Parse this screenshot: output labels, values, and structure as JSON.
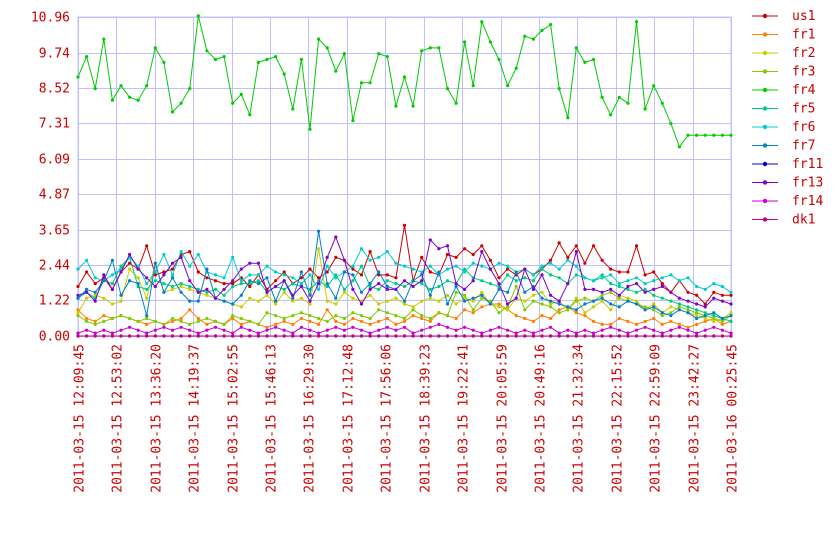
{
  "chart_data": {
    "type": "line",
    "title": "",
    "xlabel": "",
    "ylabel": "",
    "ylim": [
      0,
      10.96
    ],
    "grid": true,
    "legend": "right",
    "y_ticks": [
      "0.00",
      "1.22",
      "2.44",
      "3.65",
      "4.87",
      "6.09",
      "7.31",
      "8.52",
      "9.74",
      "10.96"
    ],
    "x_ticks": [
      "2011-03-15 12:09:45",
      "2011-03-15 12:53:02",
      "2011-03-15 13:36:20",
      "2011-03-15 14:19:37",
      "2011-03-15 15:02:55",
      "2011-03-15 15:46:13",
      "2011-03-15 16:29:30",
      "2011-03-15 17:12:48",
      "2011-03-15 17:56:06",
      "2011-03-15 18:39:23",
      "2011-03-15 19:22:41",
      "2011-03-15 20:05:59",
      "2011-03-15 20:49:16",
      "2011-03-15 21:32:34",
      "2011-03-15 22:15:52",
      "2011-03-15 22:59:09",
      "2011-03-15 23:42:27",
      "2011-03-16 00:25:45"
    ],
    "series": [
      {
        "name": "us1",
        "color": "#cc0000",
        "values": [
          1.7,
          2.2,
          1.8,
          2.0,
          1.6,
          2.2,
          2.5,
          2.3,
          3.1,
          2.1,
          2.2,
          2.3,
          2.8,
          2.9,
          2.2,
          2.0,
          1.9,
          1.8,
          1.8,
          2.0,
          1.7,
          2.1,
          1.6,
          1.9,
          2.2,
          1.8,
          2.0,
          2.3,
          2.0,
          2.2,
          2.7,
          2.6,
          2.3,
          2.1,
          2.9,
          2.1,
          2.1,
          2.0,
          3.8,
          1.9,
          2.7,
          2.2,
          2.1,
          2.8,
          2.7,
          3.0,
          2.8,
          3.1,
          2.6,
          2.0,
          2.3,
          2.1,
          2.3,
          2.1,
          2.3,
          2.6,
          3.2,
          2.7,
          3.1,
          2.5,
          3.1,
          2.6,
          2.3,
          2.2,
          2.2,
          3.1,
          2.1,
          2.2,
          1.8,
          1.5,
          1.9,
          1.5,
          1.4,
          1.1,
          1.5,
          1.4,
          1.4
        ]
      },
      {
        "name": "fr1",
        "color": "#ff8000",
        "values": [
          0.9,
          0.6,
          0.5,
          0.7,
          0.6,
          0.7,
          0.6,
          0.5,
          0.4,
          0.5,
          0.4,
          0.5,
          0.6,
          0.9,
          0.6,
          0.4,
          0.5,
          0.4,
          0.6,
          0.4,
          0.5,
          0.4,
          0.3,
          0.4,
          0.5,
          0.4,
          0.6,
          0.5,
          0.4,
          0.9,
          0.5,
          0.4,
          0.6,
          0.5,
          0.4,
          0.5,
          0.6,
          0.4,
          0.5,
          0.7,
          0.6,
          0.5,
          0.8,
          0.7,
          0.6,
          0.9,
          0.8,
          1.0,
          1.1,
          1.1,
          0.9,
          0.7,
          0.6,
          0.5,
          0.7,
          0.6,
          0.9,
          1.0,
          0.8,
          0.7,
          0.5,
          0.4,
          0.4,
          0.6,
          0.5,
          0.4,
          0.5,
          0.6,
          0.4,
          0.5,
          0.4,
          0.3,
          0.4,
          0.5,
          0.6,
          0.4,
          0.5
        ]
      },
      {
        "name": "fr2",
        "color": "#cccc00",
        "values": [
          0.8,
          1.3,
          1.4,
          1.3,
          1.1,
          1.2,
          2.3,
          2.0,
          1.3,
          2.5,
          1.5,
          1.6,
          1.7,
          1.6,
          1.5,
          1.4,
          1.3,
          1.2,
          1.1,
          1.0,
          1.3,
          1.2,
          1.4,
          1.1,
          1.5,
          1.2,
          1.3,
          1.1,
          3.0,
          1.2,
          1.1,
          1.5,
          1.3,
          1.2,
          1.4,
          1.1,
          1.2,
          1.3,
          1.1,
          1.0,
          1.2,
          1.3,
          1.2,
          1.4,
          1.1,
          1.3,
          1.2,
          1.5,
          1.1,
          1.0,
          0.9,
          1.3,
          1.2,
          1.4,
          1.5,
          1.1,
          1.2,
          0.9,
          1.3,
          0.8,
          1.0,
          1.2,
          0.9,
          1.4,
          1.3,
          1.2,
          0.9,
          1.1,
          0.8,
          1.0,
          0.9,
          0.8,
          0.7,
          0.6,
          0.5,
          0.6,
          0.8
        ]
      },
      {
        "name": "fr3",
        "color": "#80cc00",
        "values": [
          0.7,
          0.5,
          0.4,
          0.5,
          0.6,
          0.7,
          0.6,
          0.5,
          0.6,
          0.5,
          0.4,
          0.6,
          0.5,
          0.4,
          0.5,
          0.6,
          0.5,
          0.4,
          0.7,
          0.6,
          0.5,
          0.4,
          0.8,
          0.7,
          0.6,
          0.7,
          0.8,
          0.7,
          0.6,
          0.5,
          0.7,
          0.6,
          0.8,
          0.7,
          0.6,
          0.9,
          0.8,
          0.7,
          0.6,
          0.9,
          0.7,
          0.6,
          0.8,
          0.7,
          1.5,
          1.4,
          0.9,
          1.3,
          1.2,
          0.8,
          1.0,
          1.7,
          0.9,
          1.2,
          1.1,
          1.0,
          0.8,
          0.9,
          1.2,
          1.3,
          1.2,
          1.4,
          1.5,
          1.3,
          1.2,
          1.1,
          1.0,
          0.9,
          0.7,
          0.8,
          1.0,
          0.9,
          0.8,
          0.7,
          0.6,
          0.5,
          0.7
        ]
      },
      {
        "name": "fr4",
        "color": "#00cc00",
        "values": [
          8.9,
          9.6,
          8.5,
          10.2,
          8.1,
          8.6,
          8.2,
          8.1,
          8.6,
          9.9,
          9.4,
          7.7,
          8.0,
          8.5,
          11.0,
          9.8,
          9.5,
          9.6,
          8.0,
          8.3,
          7.6,
          9.4,
          9.5,
          9.6,
          9.0,
          7.8,
          9.5,
          7.1,
          10.2,
          9.9,
          9.1,
          9.7,
          7.4,
          8.7,
          8.7,
          9.7,
          9.6,
          7.9,
          8.9,
          7.9,
          9.8,
          9.9,
          9.9,
          8.5,
          8.0,
          10.1,
          8.6,
          10.8,
          10.1,
          9.5,
          8.6,
          9.2,
          10.3,
          10.2,
          10.5,
          10.7,
          8.5,
          7.5,
          9.9,
          9.4,
          9.5,
          8.2,
          7.6,
          8.2,
          8.0,
          10.8,
          7.8,
          8.6,
          8.0,
          7.3,
          6.5,
          6.9,
          6.9,
          6.9,
          6.9,
          6.9,
          6.9
        ]
      },
      {
        "name": "fr5",
        "color": "#00cc80",
        "values": [
          1.3,
          1.5,
          1.3,
          1.9,
          1.8,
          2.4,
          2.7,
          1.7,
          1.6,
          1.9,
          1.8,
          1.7,
          1.8,
          1.7,
          1.6,
          1.5,
          1.6,
          1.4,
          1.7,
          1.8,
          1.8,
          1.9,
          1.5,
          1.7,
          1.6,
          1.8,
          1.7,
          1.6,
          1.9,
          1.7,
          2.1,
          1.6,
          1.9,
          2.4,
          1.7,
          1.6,
          1.9,
          1.8,
          1.7,
          1.9,
          1.8,
          1.6,
          1.7,
          1.9,
          1.8,
          2.3,
          2.0,
          1.9,
          1.8,
          1.7,
          2.1,
          1.9,
          2.0,
          1.9,
          2.3,
          2.1,
          2.0,
          1.8,
          2.1,
          2.0,
          1.9,
          2.1,
          1.8,
          1.7,
          1.6,
          1.5,
          1.6,
          1.4,
          1.3,
          1.2,
          1.1,
          1.0,
          0.9,
          0.8,
          0.7,
          0.6,
          0.5
        ]
      },
      {
        "name": "fr6",
        "color": "#00cccc",
        "values": [
          2.3,
          2.6,
          2.0,
          1.9,
          2.1,
          2.3,
          2.7,
          2.4,
          1.8,
          2.2,
          2.8,
          2.1,
          2.9,
          2.4,
          2.8,
          2.2,
          2.1,
          2.0,
          2.7,
          1.9,
          2.1,
          2.1,
          2.4,
          2.2,
          2.1,
          2.0,
          1.8,
          2.1,
          1.6,
          2.4,
          2.0,
          2.2,
          2.4,
          3.0,
          2.6,
          2.7,
          2.9,
          2.5,
          2.4,
          2.3,
          2.2,
          2.4,
          2.1,
          2.3,
          2.4,
          2.2,
          2.5,
          2.4,
          2.3,
          2.5,
          2.4,
          2.2,
          2.3,
          2.1,
          2.4,
          2.5,
          2.3,
          2.6,
          2.4,
          2.0,
          1.9,
          2.0,
          2.1,
          1.8,
          1.9,
          2.0,
          1.8,
          1.9,
          2.0,
          2.1,
          1.9,
          2.0,
          1.7,
          1.6,
          1.8,
          1.7,
          1.5
        ]
      },
      {
        "name": "fr7",
        "color": "#0080cc",
        "values": [
          1.3,
          1.6,
          1.5,
          1.9,
          2.6,
          1.4,
          1.9,
          1.8,
          0.7,
          2.5,
          1.5,
          2.0,
          1.5,
          1.2,
          1.2,
          2.3,
          1.3,
          1.2,
          1.1,
          1.4,
          1.9,
          1.8,
          2.0,
          1.2,
          1.9,
          1.3,
          2.2,
          1.4,
          3.6,
          1.8,
          1.3,
          2.2,
          2.1,
          1.5,
          1.8,
          2.2,
          1.7,
          1.6,
          1.2,
          1.9,
          2.1,
          1.4,
          2.2,
          1.1,
          1.7,
          1.2,
          1.3,
          1.4,
          1.1,
          1.6,
          1.5,
          2.2,
          1.5,
          1.7,
          1.3,
          1.2,
          1.1,
          1.0,
          0.9,
          1.1,
          1.2,
          1.3,
          1.1,
          1.0,
          1.2,
          1.1,
          0.9,
          1.0,
          0.8,
          0.7,
          0.9,
          0.8,
          0.6,
          0.7,
          0.8,
          0.6,
          0.7
        ]
      },
      {
        "name": "fr11",
        "color": "#0000cc",
        "values": [
          0.0,
          0.0,
          0.0,
          0.0,
          0.0,
          0.0,
          0.0,
          0.0,
          0.0,
          0.0,
          0.0,
          0.0,
          0.0,
          0.0,
          0.0,
          0.0,
          0.0,
          0.0,
          0.0,
          0.0,
          0.0,
          0.0,
          0.0,
          0.0,
          0.0,
          0.0,
          0.0,
          0.0,
          0.0,
          0.0,
          0.0,
          0.0,
          0.0,
          0.0,
          0.0,
          0.0,
          0.0,
          0.0,
          0.0,
          0.0,
          0.0,
          0.0,
          0.0,
          0.0,
          0.0,
          0.0,
          0.0,
          0.0,
          0.0,
          0.0,
          0.0,
          0.0,
          0.0,
          0.0,
          0.0,
          0.0,
          0.0,
          0.0,
          0.0,
          0.0,
          0.0,
          0.0,
          0.0,
          0.0,
          0.0,
          0.0,
          0.0,
          0.0,
          0.0,
          0.0,
          0.0,
          0.0,
          0.0,
          0.0,
          0.0,
          0.0,
          0.0
        ]
      },
      {
        "name": "fr13",
        "color": "#8000cc",
        "values": [
          1.4,
          1.5,
          1.2,
          2.1,
          1.6,
          2.2,
          2.8,
          2.3,
          2.0,
          1.7,
          2.1,
          2.5,
          2.7,
          1.9,
          1.5,
          1.6,
          1.3,
          1.6,
          1.9,
          2.3,
          2.5,
          2.5,
          1.5,
          1.7,
          1.9,
          1.4,
          1.7,
          1.2,
          1.8,
          2.7,
          3.4,
          2.6,
          1.6,
          1.1,
          1.6,
          1.8,
          1.6,
          1.6,
          1.9,
          1.7,
          1.9,
          3.3,
          3.0,
          3.1,
          1.8,
          1.6,
          1.9,
          2.9,
          2.3,
          1.8,
          1.1,
          1.3,
          2.3,
          1.6,
          2.1,
          1.4,
          1.2,
          1.8,
          2.9,
          1.6,
          1.6,
          1.5,
          1.6,
          1.4,
          1.7,
          1.8,
          1.5,
          1.6,
          1.7,
          1.5,
          1.3,
          1.2,
          1.1,
          1.0,
          1.3,
          1.2,
          1.1
        ]
      },
      {
        "name": "fr14",
        "color": "#cc00cc",
        "values": [
          0.1,
          0.2,
          0.1,
          0.2,
          0.1,
          0.2,
          0.3,
          0.2,
          0.1,
          0.2,
          0.3,
          0.2,
          0.3,
          0.2,
          0.1,
          0.2,
          0.3,
          0.2,
          0.1,
          0.3,
          0.2,
          0.1,
          0.2,
          0.3,
          0.2,
          0.1,
          0.3,
          0.2,
          0.1,
          0.2,
          0.3,
          0.2,
          0.3,
          0.2,
          0.1,
          0.2,
          0.3,
          0.2,
          0.3,
          0.1,
          0.2,
          0.3,
          0.4,
          0.3,
          0.2,
          0.3,
          0.2,
          0.1,
          0.2,
          0.3,
          0.2,
          0.1,
          0.2,
          0.1,
          0.2,
          0.3,
          0.1,
          0.2,
          0.1,
          0.2,
          0.1,
          0.2,
          0.3,
          0.2,
          0.1,
          0.2,
          0.3,
          0.2,
          0.1,
          0.2,
          0.3,
          0.2,
          0.1,
          0.2,
          0.3,
          0.2,
          0.1
        ]
      },
      {
        "name": "dk1",
        "color": "#cc0080",
        "values": [
          0.0,
          0.0,
          0.0,
          0.0,
          0.0,
          0.0,
          0.0,
          0.0,
          0.0,
          0.0,
          0.0,
          0.0,
          0.0,
          0.0,
          0.0,
          0.0,
          0.0,
          0.0,
          0.0,
          0.0,
          0.0,
          0.0,
          0.0,
          0.0,
          0.0,
          0.0,
          0.0,
          0.0,
          0.0,
          0.0,
          0.0,
          0.0,
          0.0,
          0.0,
          0.0,
          0.0,
          0.0,
          0.0,
          0.0,
          0.0,
          0.0,
          0.0,
          0.0,
          0.0,
          0.0,
          0.0,
          0.0,
          0.0,
          0.0,
          0.0,
          0.0,
          0.0,
          0.0,
          0.0,
          0.0,
          0.0,
          0.0,
          0.0,
          0.0,
          0.0,
          0.0,
          0.0,
          0.0,
          0.0,
          0.0,
          0.0,
          0.0,
          0.0,
          0.0,
          0.0,
          0.0,
          0.0,
          0.0,
          0.0,
          0.0,
          0.0,
          0.0
        ]
      }
    ]
  }
}
